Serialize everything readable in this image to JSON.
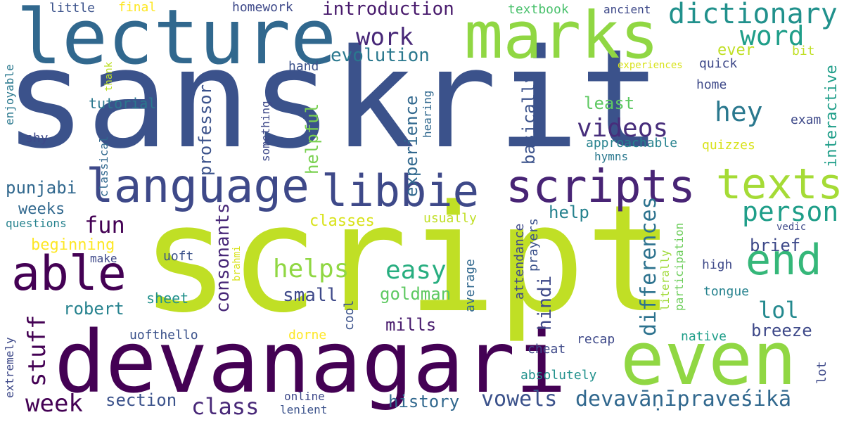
{
  "words": [
    {
      "text": "sanskrit",
      "color": "#3b528b"
    },
    {
      "text": "script",
      "color": "#c0df25"
    },
    {
      "text": "devanagari",
      "color": "#440154"
    },
    {
      "text": "lecture",
      "color": "#31688e"
    },
    {
      "text": "marks",
      "color": "#90d743"
    },
    {
      "text": "even",
      "color": "#90d743"
    },
    {
      "text": "language",
      "color": "#3e4989"
    },
    {
      "text": "libbie",
      "color": "#3e4989"
    },
    {
      "text": "scripts",
      "color": "#482475"
    },
    {
      "text": "texts",
      "color": "#a5db36"
    },
    {
      "text": "end",
      "color": "#35b779"
    },
    {
      "text": "able",
      "color": "#440154"
    },
    {
      "text": "dictionary",
      "color": "#21918c"
    },
    {
      "text": "word",
      "color": "#1f9e89"
    },
    {
      "text": "person",
      "color": "#1f9e89"
    },
    {
      "text": "videos",
      "color": "#472d7b"
    },
    {
      "text": "hey",
      "color": "#2a788e"
    },
    {
      "text": "helps",
      "color": "#90d743"
    },
    {
      "text": "easy",
      "color": "#28ae80"
    },
    {
      "text": "work",
      "color": "#482878"
    },
    {
      "text": "week",
      "color": "#440154"
    },
    {
      "text": "class",
      "color": "#482878"
    },
    {
      "text": "stuff",
      "color": "#440154"
    },
    {
      "text": "fun",
      "color": "#440154"
    },
    {
      "text": "lol",
      "color": "#23898e"
    },
    {
      "text": "vowels",
      "color": "#3b528b"
    },
    {
      "text": "devavāṇīpraveśikā",
      "color": "#31688e"
    },
    {
      "text": "introduction",
      "color": "#481a6c"
    },
    {
      "text": "evolution",
      "color": "#2a788e"
    },
    {
      "text": "consonants",
      "color": "#482878"
    },
    {
      "text": "differences",
      "color": "#2c728e"
    },
    {
      "text": "hindi",
      "color": "#3e4989"
    },
    {
      "text": "experience",
      "color": "#31688e"
    },
    {
      "text": "professor",
      "color": "#3b528b"
    },
    {
      "text": "basically",
      "color": "#3b528b"
    },
    {
      "text": "helpful",
      "color": "#7ad151"
    },
    {
      "text": "interactive",
      "color": "#1f9e89"
    },
    {
      "text": "punjabi",
      "color": "#31688e"
    },
    {
      "text": "weeks",
      "color": "#31688e"
    },
    {
      "text": "robert",
      "color": "#26828e"
    },
    {
      "text": "goldman",
      "color": "#5ec962"
    },
    {
      "text": "mills",
      "color": "#481b6d"
    },
    {
      "text": "small",
      "color": "#3e4989"
    },
    {
      "text": "brief",
      "color": "#3e4989"
    },
    {
      "text": "breeze",
      "color": "#3e4989"
    },
    {
      "text": "least",
      "color": "#5ec962"
    },
    {
      "text": "help",
      "color": "#26828e"
    },
    {
      "text": "section",
      "color": "#3b528b"
    },
    {
      "text": "history",
      "color": "#31688e"
    },
    {
      "text": "beginning",
      "color": "#fde725"
    },
    {
      "text": "classes",
      "color": "#d8e219"
    },
    {
      "text": "tutorial",
      "color": "#2a788e"
    },
    {
      "text": "approachable",
      "color": "#26828e"
    },
    {
      "text": "hymns",
      "color": "#2a788e"
    },
    {
      "text": "quizzes",
      "color": "#d8e219"
    },
    {
      "text": "exam",
      "color": "#3e4989"
    },
    {
      "text": "home",
      "color": "#3e4989"
    },
    {
      "text": "quick",
      "color": "#3e4989"
    },
    {
      "text": "bit",
      "color": "#c0df25"
    },
    {
      "text": "ever",
      "color": "#c0df25"
    },
    {
      "text": "experiences",
      "color": "#d8e219"
    },
    {
      "text": "hand",
      "color": "#3b528b"
    },
    {
      "text": "textbook",
      "color": "#4ac16d"
    },
    {
      "text": "ancient",
      "color": "#3e4989"
    },
    {
      "text": "homework",
      "color": "#3e4989"
    },
    {
      "text": "little",
      "color": "#3b528b"
    },
    {
      "text": "final",
      "color": "#fde725"
    },
    {
      "text": "thank",
      "color": "#bddf26"
    },
    {
      "text": "enjoyable",
      "color": "#2a788e"
    },
    {
      "text": "shy",
      "color": "#3e4989"
    },
    {
      "text": "classical",
      "color": "#31688e"
    },
    {
      "text": "something",
      "color": "#3e4989"
    },
    {
      "text": "hearing",
      "color": "#31688e"
    },
    {
      "text": "questions",
      "color": "#26828e"
    },
    {
      "text": "usually",
      "color": "#c0df25"
    },
    {
      "text": "make",
      "color": "#3e4989"
    },
    {
      "text": "uoft",
      "color": "#3b528b"
    },
    {
      "text": "brahmi",
      "color": "#d8e219"
    },
    {
      "text": "sheet",
      "color": "#21918c"
    },
    {
      "text": "uofthello",
      "color": "#3b528b"
    },
    {
      "text": "dorne",
      "color": "#fde725"
    },
    {
      "text": "cool",
      "color": "#3b528b"
    },
    {
      "text": "average",
      "color": "#31688e"
    },
    {
      "text": "attendance",
      "color": "#3e4989"
    },
    {
      "text": "prayers",
      "color": "#3b528b"
    },
    {
      "text": "literally",
      "color": "#a0da39"
    },
    {
      "text": "participation",
      "color": "#6ccd5a"
    },
    {
      "text": "high",
      "color": "#3e4989"
    },
    {
      "text": "tongue",
      "color": "#26828e"
    },
    {
      "text": "native",
      "color": "#1f9e89"
    },
    {
      "text": "recap",
      "color": "#3e4989"
    },
    {
      "text": "cheat",
      "color": "#3e4989"
    },
    {
      "text": "absolutely",
      "color": "#21918c"
    },
    {
      "text": "lot",
      "color": "#3e4989"
    },
    {
      "text": "vedic",
      "color": "#3e4989"
    },
    {
      "text": "extremely",
      "color": "#3e4989"
    },
    {
      "text": "online",
      "color": "#3e4989"
    },
    {
      "text": "lenient",
      "color": "#3b528b"
    }
  ]
}
